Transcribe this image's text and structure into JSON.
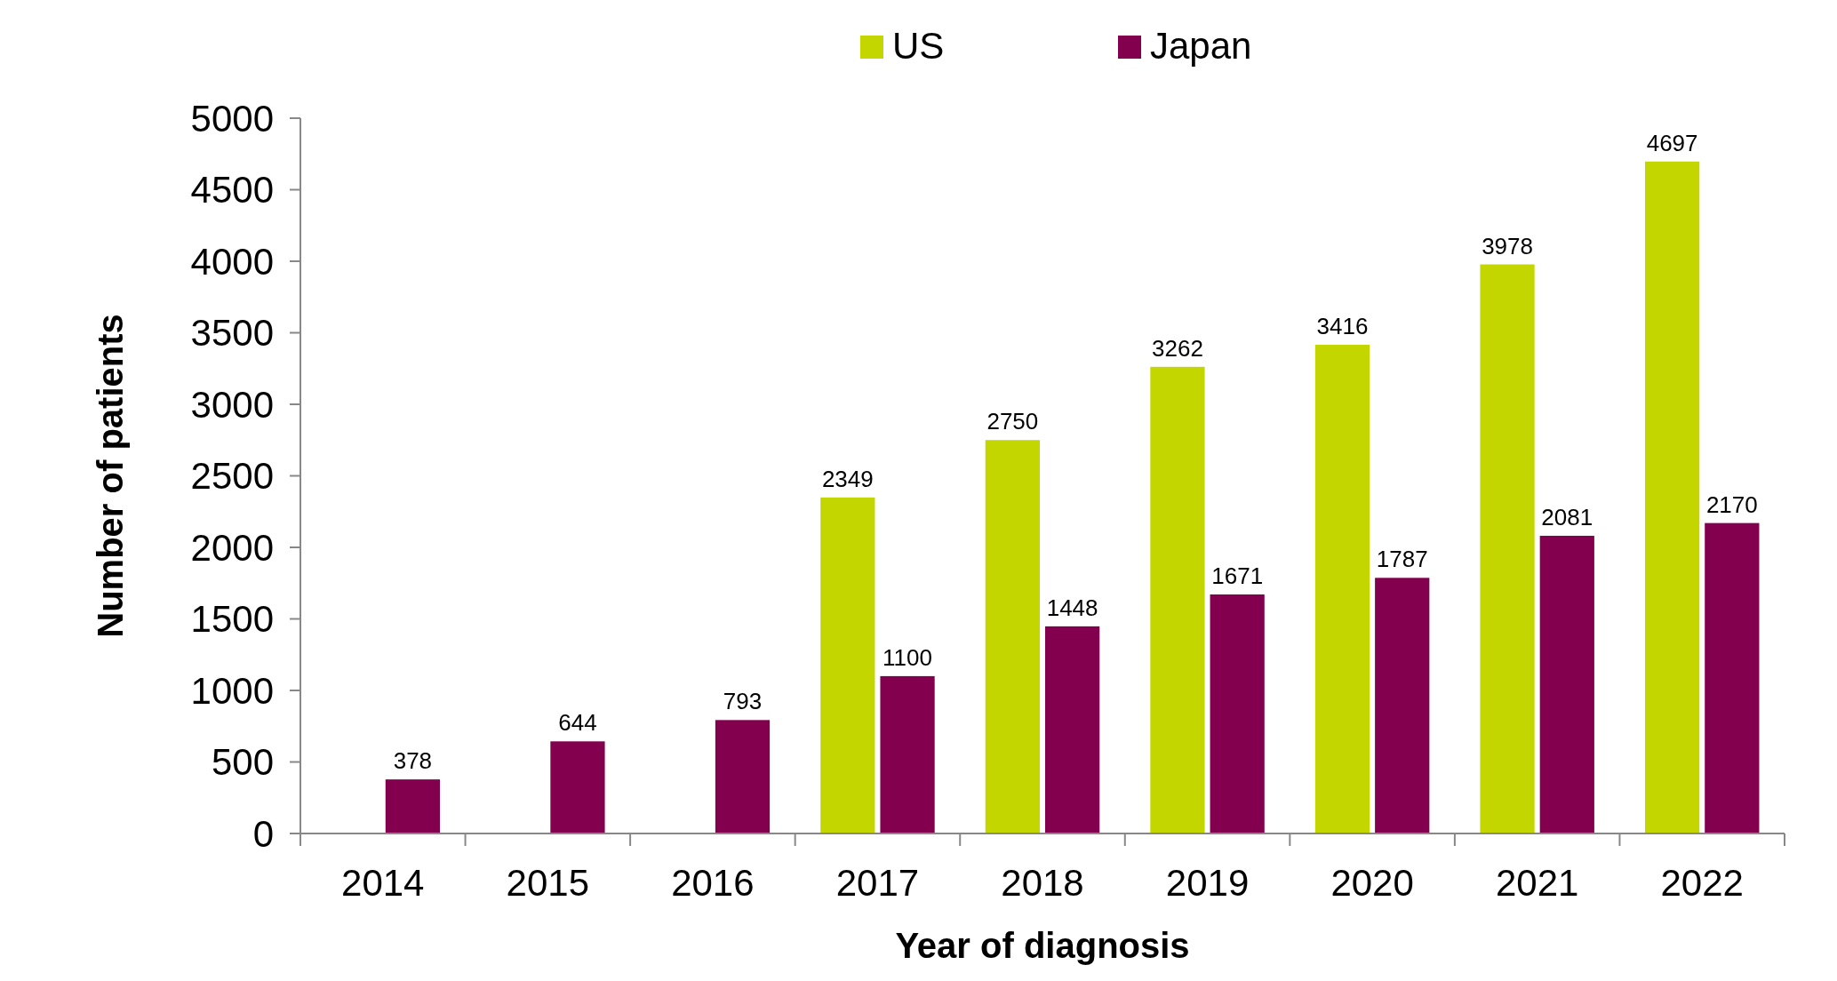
{
  "chart_data": {
    "type": "bar",
    "xlabel": "Year of diagnosis",
    "ylabel": "Number of patients",
    "categories": [
      "2014",
      "2015",
      "2016",
      "2017",
      "2018",
      "2019",
      "2020",
      "2021",
      "2022"
    ],
    "series": [
      {
        "name": "US",
        "color": "#c4d600",
        "values": [
          null,
          null,
          null,
          2349,
          2750,
          3262,
          3416,
          3978,
          4697
        ]
      },
      {
        "name": "Japan",
        "color": "#83004f",
        "values": [
          378,
          644,
          793,
          1100,
          1448,
          1671,
          1787,
          2081,
          2170
        ]
      }
    ],
    "ylim": [
      0,
      5000
    ],
    "yticks": [
      0,
      500,
      1000,
      1500,
      2000,
      2500,
      3000,
      3500,
      4000,
      4500,
      5000
    ],
    "data_labels": true,
    "legend": "top",
    "grid": false
  }
}
